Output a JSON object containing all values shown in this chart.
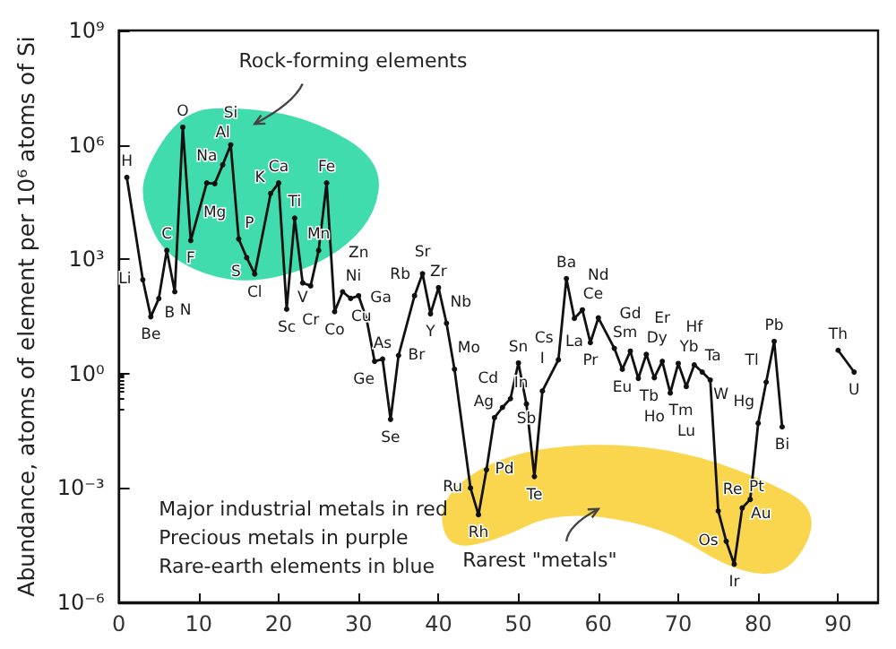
{
  "chart_data": {
    "type": "line",
    "ylabel": "Abundance, atoms of element per 10⁶ atoms of Si",
    "x": [
      1,
      3,
      4,
      5,
      6,
      7,
      8,
      9,
      11,
      12,
      13,
      14,
      15,
      16,
      17,
      19,
      20,
      21,
      22,
      23,
      24,
      25,
      26,
      27,
      28,
      29,
      30,
      31,
      32,
      33,
      34,
      35,
      37,
      38,
      39,
      40,
      41,
      42,
      44,
      45,
      46,
      47,
      48,
      49,
      50,
      51,
      52,
      53,
      55,
      56,
      57,
      58,
      59,
      60,
      62,
      63,
      64,
      65,
      66,
      67,
      68,
      69,
      70,
      71,
      72,
      73,
      74,
      75,
      76,
      77,
      78,
      79,
      80,
      81,
      82,
      83,
      86,
      90,
      92
    ],
    "series": [
      {
        "color": "#111111",
        "values": [
          140000,
          290,
          31,
          93,
          1700,
          140,
          2900000,
          3100,
          100000,
          96000,
          300000,
          1000000,
          3400,
          1100,
          410,
          53000,
          100000,
          49,
          12000,
          240,
          200,
          1700,
          100000,
          42,
          140,
          94,
          110,
          27,
          2.1,
          2.4,
          0.063,
          3,
          110,
          420,
          37,
          180,
          21,
          1.3,
          0.001,
          0.0002,
          0.003,
          0.07,
          0.13,
          0.22,
          1.9,
          0.16,
          0.002,
          0.35,
          2.3,
          310,
          28,
          47,
          6.5,
          29,
          4.6,
          1.3,
          3.9,
          0.75,
          3.2,
          0.78,
          2.1,
          0.31,
          1.85,
          0.46,
          1.7,
          1.1,
          0.68,
          0.00025,
          4e-05,
          1e-05,
          0.0003,
          0.0005,
          0.05,
          0.6,
          7,
          0.04,
          null,
          4.1,
          1.1
        ],
        "value_labels": [
          "H",
          "Li",
          "Be",
          "B",
          "C",
          "N",
          "O",
          "F",
          "Na",
          "Mg",
          "Al",
          "Si",
          "P",
          "S",
          "Cl",
          "K",
          "Ca",
          "Sc",
          "Ti",
          "V",
          "Cr",
          "Mn",
          "Fe",
          "Co",
          "Ni",
          "Cu",
          "Zn",
          "Ga",
          "Ge",
          "As",
          "Se",
          "Br",
          "Rb",
          "Sr",
          "Y",
          "Zr",
          "Nb",
          "Mo",
          "Ru",
          "Rh",
          "Pd",
          "Ag",
          "Cd",
          "In",
          "Sn",
          "Sb",
          "Te",
          "I",
          "Cs",
          "Ba",
          "La",
          "Ce",
          "Pr",
          "Nd",
          "Sm",
          "Eu",
          "Gd",
          "Tb",
          "Dy",
          "Ho",
          "Er",
          "Tm",
          "Yb",
          "Lu",
          "Hf",
          "Ta",
          "W",
          "Re",
          "Os",
          "Ir",
          "Pt",
          "Au",
          "Hg",
          "Tl",
          "Pb",
          "Bi",
          null,
          "Th",
          "U"
        ]
      }
    ],
    "annotations": [
      "Rock-forming elements",
      "Rarest \"metals\"",
      "Major industrial metals in red",
      "Precious metals in purple",
      "Rare-earth elements in blue"
    ],
    "xlim": [
      0,
      95
    ],
    "xticks": [
      0,
      10,
      20,
      30,
      40,
      50,
      60,
      70,
      80,
      90
    ],
    "log": "y",
    "ylim": [
      1e-06,
      1000000000
    ],
    "yticks": [
      {
        "value": 1e-06,
        "label": "10⁻⁶"
      },
      {
        "value": 0.001,
        "label": "10⁻³"
      },
      {
        "value": 1,
        "label": "10⁰"
      },
      {
        "value": 1000,
        "label": "10³"
      },
      {
        "value": 1000000,
        "label": "10⁶"
      },
      {
        "value": 1000000000,
        "label": "10⁹"
      }
    ],
    "grid": false,
    "marker": "circle",
    "line_style": "solid"
  }
}
